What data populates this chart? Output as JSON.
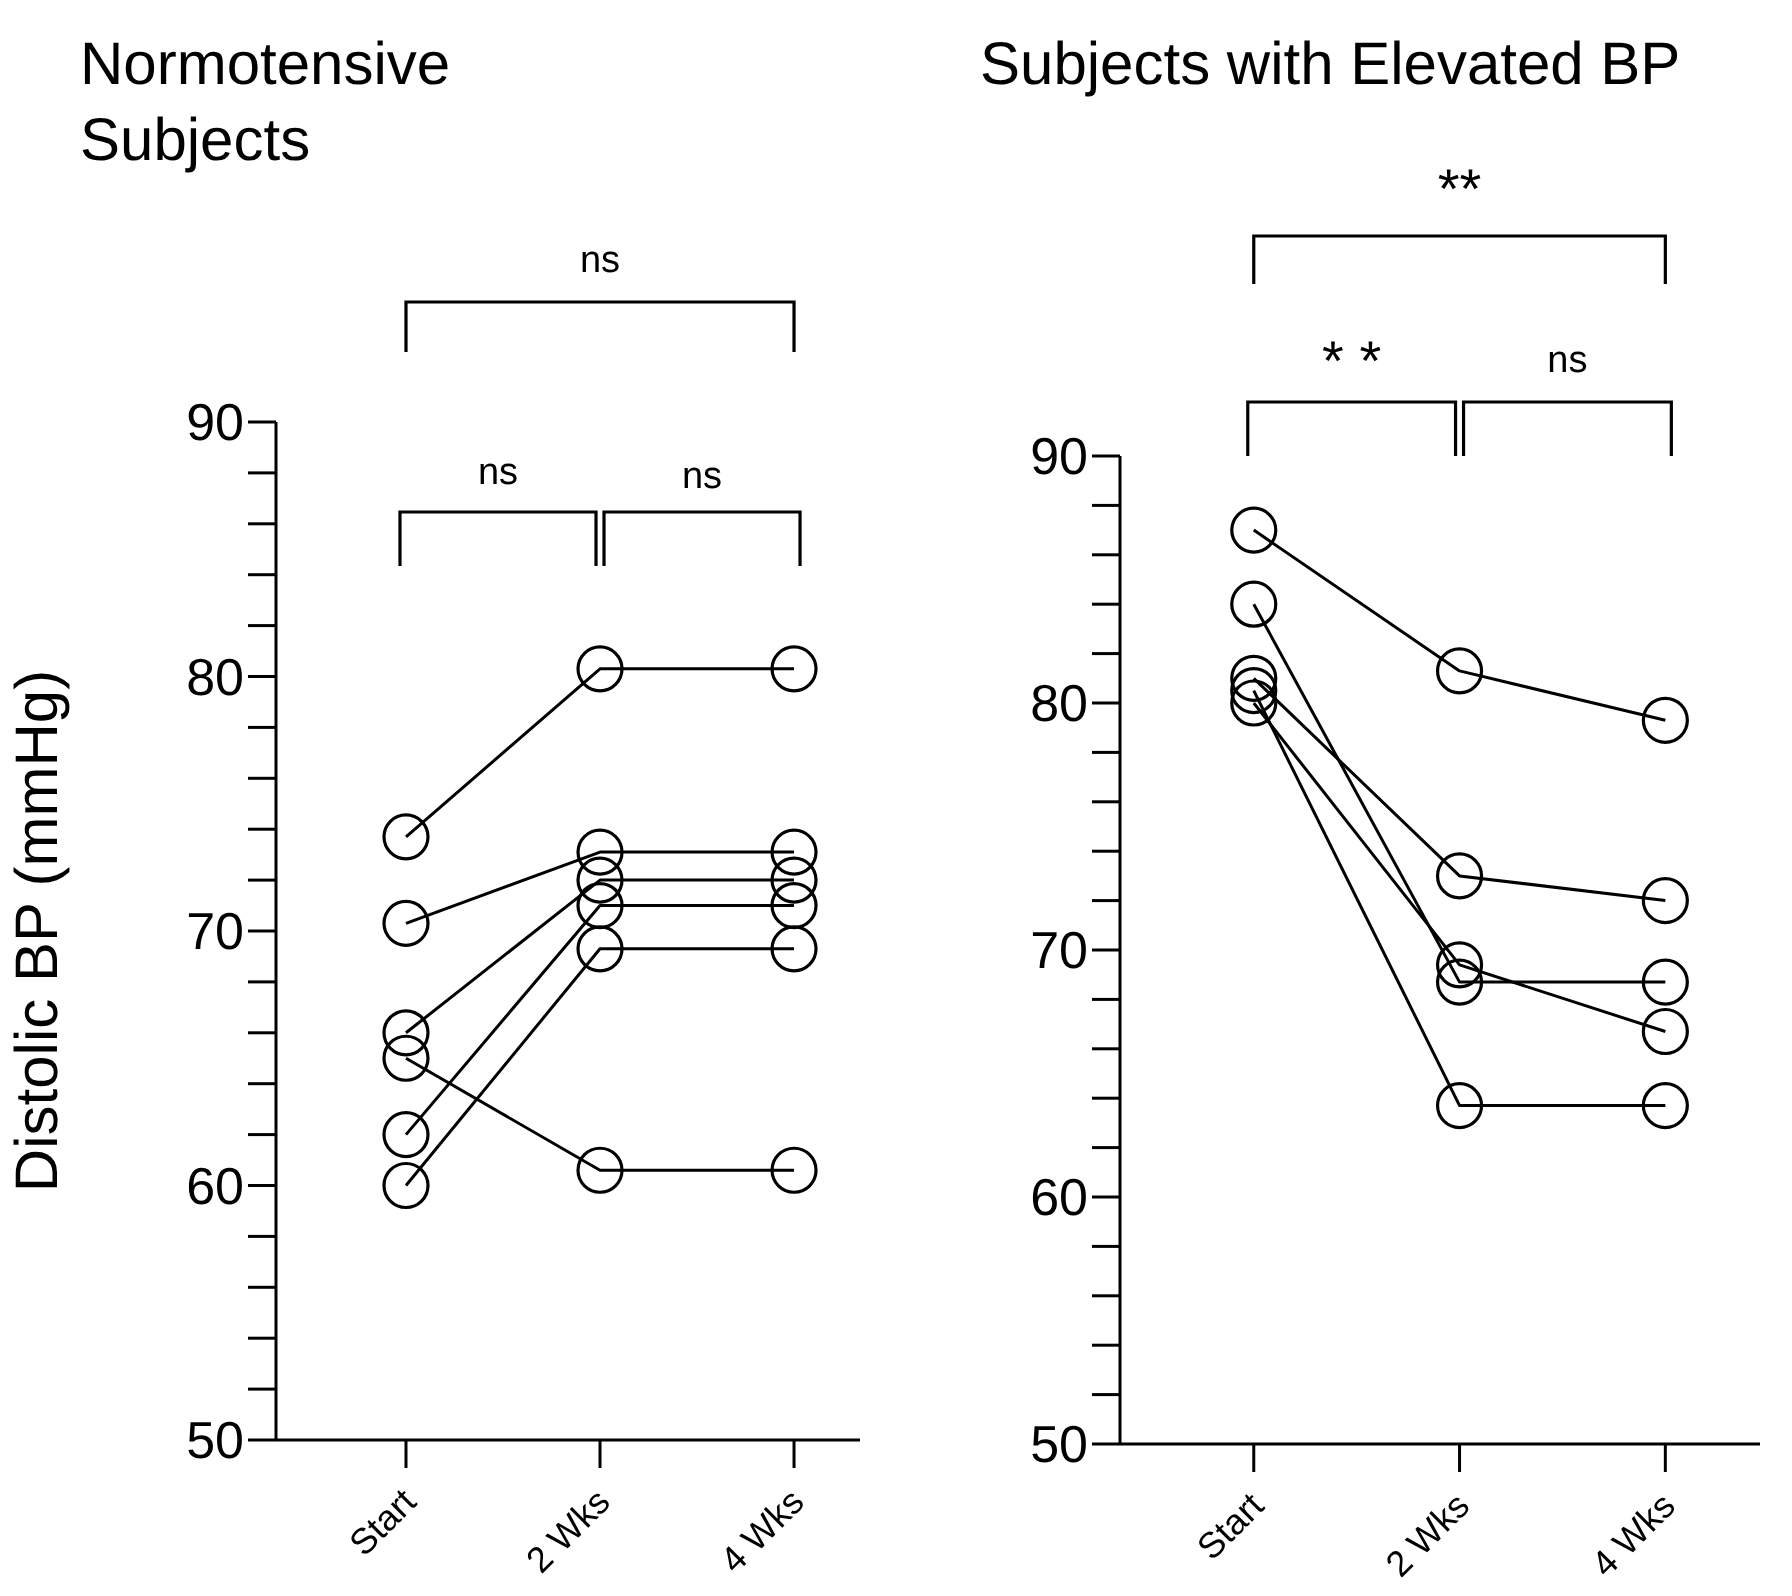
{
  "chart_data": [
    {
      "type": "line",
      "title": "Normotensive Subjects",
      "ylabel": "Distolic BP (mmHg)",
      "categories": [
        "Start",
        "2 Wks",
        "4 Wks"
      ],
      "marker": "circle",
      "grid": false,
      "series": [
        {
          "color": "#000000",
          "values": [
            73.7,
            80.3,
            80.3
          ]
        },
        {
          "color": "#000000",
          "values": [
            70.3,
            73.1,
            73.1
          ]
        },
        {
          "color": "#000000",
          "values": [
            66.0,
            72.0,
            72.0
          ]
        },
        {
          "color": "#000000",
          "values": [
            65.0,
            60.6,
            60.6
          ]
        },
        {
          "color": "#000000",
          "values": [
            62.0,
            71.0,
            71.0
          ]
        },
        {
          "color": "#000000",
          "values": [
            60.0,
            69.3,
            69.3
          ]
        }
      ],
      "ylim": [
        50,
        90
      ],
      "yticks": [
        50,
        {
          "value": 52,
          "label": null
        },
        {
          "value": 54,
          "label": null
        },
        {
          "value": 56,
          "label": null
        },
        {
          "value": 58,
          "label": null
        },
        60,
        {
          "value": 62,
          "label": null
        },
        {
          "value": 64,
          "label": null
        },
        {
          "value": 66,
          "label": null
        },
        {
          "value": 68,
          "label": null
        },
        70,
        {
          "value": 72,
          "label": null
        },
        {
          "value": 74,
          "label": null
        },
        {
          "value": 76,
          "label": null
        },
        {
          "value": 78,
          "label": null
        },
        80,
        {
          "value": 82,
          "label": null
        },
        {
          "value": 84,
          "label": null
        },
        {
          "value": 86,
          "label": null
        },
        {
          "value": 88,
          "label": null
        },
        90
      ],
      "annotations": [
        "ns",
        "ns",
        "ns"
      ]
    },
    {
      "type": "line",
      "title": "Subjects with Elevated BP",
      "categories": [
        "Start",
        "2 Wks",
        "4 Wks"
      ],
      "marker": "circle",
      "grid": false,
      "series": [
        {
          "color": "#000000",
          "values": [
            87.0,
            81.3,
            79.3
          ]
        },
        {
          "color": "#000000",
          "values": [
            84.0,
            68.7,
            68.7
          ]
        },
        {
          "color": "#000000",
          "values": [
            81.0,
            73.0,
            72.0
          ]
        },
        {
          "color": "#000000",
          "values": [
            80.5,
            63.7,
            63.7
          ]
        },
        {
          "color": "#000000",
          "values": [
            80.0,
            69.4,
            66.7
          ]
        }
      ],
      "ylim": [
        50,
        90
      ],
      "yticks": [
        50,
        {
          "value": 52,
          "label": null
        },
        {
          "value": 54,
          "label": null
        },
        {
          "value": 56,
          "label": null
        },
        {
          "value": 58,
          "label": null
        },
        60,
        {
          "value": 62,
          "label": null
        },
        {
          "value": 64,
          "label": null
        },
        {
          "value": 66,
          "label": null
        },
        {
          "value": 68,
          "label": null
        },
        70,
        {
          "value": 72,
          "label": null
        },
        {
          "value": 74,
          "label": null
        },
        {
          "value": 76,
          "label": null
        },
        {
          "value": 78,
          "label": null
        },
        80,
        {
          "value": 82,
          "label": null
        },
        {
          "value": 84,
          "label": null
        },
        {
          "value": 86,
          "label": null
        },
        {
          "value": 88,
          "label": null
        },
        90
      ],
      "annotations": [
        "**",
        "* *",
        "ns"
      ]
    }
  ]
}
